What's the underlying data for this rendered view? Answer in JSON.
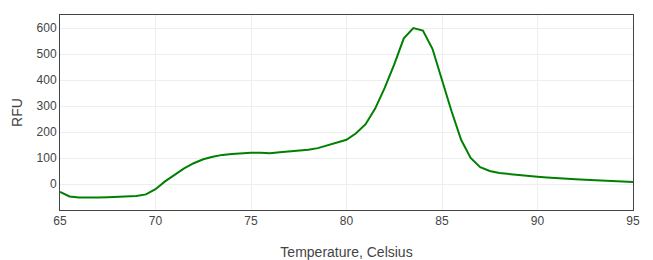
{
  "chart_data": {
    "type": "line",
    "xlabel": "Temperature, Celsius",
    "ylabel": "RFU",
    "x": [
      65.0,
      65.5,
      66.0,
      66.5,
      67.0,
      67.5,
      68.0,
      68.5,
      69.0,
      69.5,
      70.0,
      70.5,
      71.0,
      71.5,
      72.0,
      72.5,
      73.0,
      73.5,
      74.0,
      74.5,
      75.0,
      75.5,
      76.0,
      76.5,
      77.0,
      77.5,
      78.0,
      78.5,
      79.0,
      79.5,
      80.0,
      80.5,
      81.0,
      81.5,
      82.0,
      82.5,
      83.0,
      83.5,
      84.0,
      84.5,
      85.0,
      85.5,
      86.0,
      86.5,
      87.0,
      87.5,
      88.0,
      88.5,
      89.0,
      89.5,
      90.0,
      90.5,
      91.0,
      91.5,
      92.0,
      92.5,
      93.0,
      93.5,
      94.0,
      94.5,
      95.0
    ],
    "series": [
      {
        "color": "#008000",
        "values": [
          -30,
          -48,
          -52,
          -53,
          -52,
          -51,
          -50,
          -49,
          -46,
          -40,
          -20,
          10,
          35,
          60,
          80,
          95,
          105,
          112,
          115,
          118,
          120,
          120,
          118,
          122,
          125,
          128,
          132,
          138,
          148,
          158,
          170,
          195,
          230,
          290,
          370,
          460,
          560,
          600,
          590,
          520,
          400,
          280,
          170,
          100,
          65,
          50,
          42,
          38,
          35,
          32,
          28,
          25,
          22,
          20,
          18,
          16,
          14,
          12,
          11,
          10,
          8
        ]
      }
    ],
    "xlim": [
      65,
      95
    ],
    "ylim": [
      -100,
      650
    ],
    "xticks": [
      65,
      70,
      75,
      80,
      85,
      90,
      95
    ],
    "yticks": [
      0,
      100,
      200,
      300,
      400,
      500,
      600
    ],
    "grid": true
  }
}
